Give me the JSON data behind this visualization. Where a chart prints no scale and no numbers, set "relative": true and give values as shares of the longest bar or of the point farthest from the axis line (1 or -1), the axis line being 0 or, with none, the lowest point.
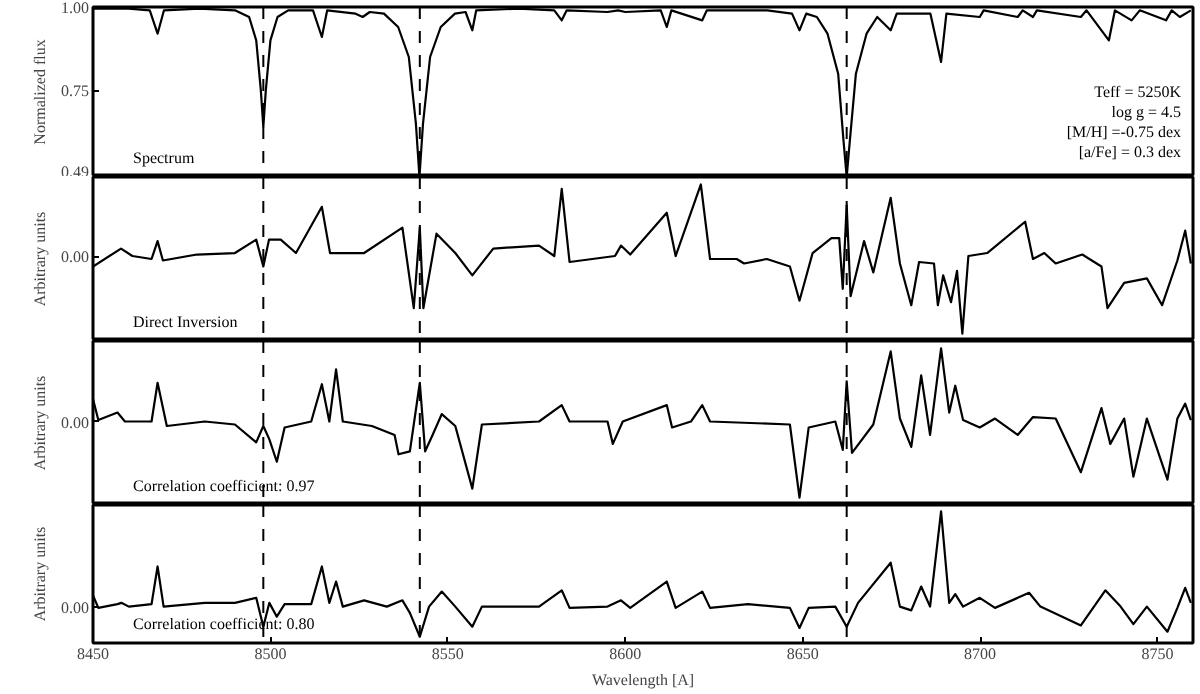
{
  "chart_data": [
    {
      "type": "line",
      "title": "Spectrum",
      "ylabel": "Normalized flux",
      "annotations": [
        "Teff = 5250K",
        "log g = 4.5",
        "[M/H] =-0.75 dex",
        "[a/Fe] = 0.3 dex"
      ],
      "xlim": [
        8450,
        8760
      ],
      "xticks": [
        8450,
        8500,
        8550,
        8600,
        8650,
        8700,
        8750
      ],
      "ylim": [
        0.49,
        1.0
      ],
      "yticks": [
        0.49,
        0.75,
        {
          "value": 1.0,
          "label": "1.00"
        }
      ],
      "tick_labels": "y",
      "line_style": "solid",
      "ref_lines": [
        {
          "axis": "x",
          "value": 8498,
          "label": null,
          "color": "#000000",
          "line_style": "dashed"
        },
        {
          "axis": "x",
          "value": 8542.1,
          "label": null,
          "color": "#000000",
          "line_style": "dashed"
        },
        {
          "axis": "x",
          "value": 8662.4,
          "label": null,
          "color": "#000000",
          "line_style": "dashed"
        }
      ],
      "series": [
        {
          "color": "#000000",
          "x": [
            8450,
            8460,
            8466,
            8468.2,
            8470,
            8480,
            8490,
            8494,
            8496,
            8497.3,
            8498,
            8498.7,
            8500,
            8502,
            8505,
            8512,
            8514.5,
            8516,
            8524,
            8526,
            8528,
            8532,
            8536,
            8539,
            8541,
            8542,
            8543,
            8545,
            8548,
            8552,
            8555,
            8556.9,
            8558,
            8570,
            8580,
            8582.1,
            8583.5,
            8595,
            8598,
            8600,
            8610,
            8611.7,
            8613,
            8621.7,
            8623,
            8640,
            8647,
            8649.1,
            8651,
            8654,
            8657,
            8660,
            8661.5,
            8662.4,
            8663.3,
            8665,
            8668,
            8671,
            8674.8,
            8676.5,
            8686,
            8689,
            8690.5,
            8699.9,
            8701,
            8710.6,
            8712,
            8714.9,
            8716,
            8728.4,
            8730,
            8736.3,
            8738,
            8742.7,
            8745,
            8752.4,
            8754,
            8756.3,
            8759.4
          ],
          "values": [
            0.995,
            0.995,
            0.99,
            0.92,
            0.99,
            0.995,
            0.99,
            0.97,
            0.9,
            0.75,
            0.64,
            0.75,
            0.9,
            0.97,
            0.99,
            0.99,
            0.91,
            0.99,
            0.98,
            0.97,
            0.985,
            0.98,
            0.94,
            0.85,
            0.65,
            0.49,
            0.65,
            0.85,
            0.94,
            0.98,
            0.985,
            0.93,
            0.99,
            0.995,
            0.99,
            0.96,
            0.99,
            0.985,
            0.99,
            0.985,
            0.99,
            0.94,
            0.99,
            0.96,
            0.99,
            0.99,
            0.98,
            0.93,
            0.98,
            0.97,
            0.92,
            0.8,
            0.6,
            0.49,
            0.6,
            0.8,
            0.92,
            0.97,
            0.93,
            0.98,
            0.98,
            0.835,
            0.98,
            0.97,
            0.99,
            0.97,
            0.99,
            0.97,
            0.99,
            0.97,
            0.99,
            0.9,
            0.99,
            0.96,
            0.99,
            0.96,
            0.99,
            0.97,
            0.99
          ]
        }
      ]
    },
    {
      "type": "line",
      "title": "Direct Inversion",
      "ylabel": "Arbitrary units",
      "relative": true,
      "xlim": [
        8450,
        8760
      ],
      "xticks": [
        8450,
        8500,
        8550,
        8600,
        8650,
        8700,
        8750
      ],
      "annotations": [
        "0.00"
      ],
      "tick_labels": "y",
      "line_style": "solid",
      "ref_lines": [
        {
          "axis": "x",
          "value": 8498,
          "label": null,
          "color": "#000000",
          "line_style": "dashed"
        },
        {
          "axis": "x",
          "value": 8542.1,
          "label": null,
          "color": "#000000",
          "line_style": "dashed"
        },
        {
          "axis": "x",
          "value": 8662.4,
          "label": null,
          "color": "#000000",
          "line_style": "dashed"
        }
      ],
      "series": [
        {
          "color": "#000000",
          "x": [
            8450,
            8457.9,
            8461.1,
            8466.5,
            8468.2,
            8469.7,
            8479.3,
            8490,
            8496,
            8498,
            8499.6,
            8502.9,
            8507.2,
            8514.5,
            8516.8,
            8526.4,
            8537.2,
            8540.4,
            8542.1,
            8543.1,
            8546.8,
            8552.1,
            8556.9,
            8562.8,
            8575.7,
            8580,
            8582.1,
            8584.3,
            8597.1,
            8598.8,
            8601.4,
            8611.7,
            8614.2,
            8621.3,
            8623.9,
            8631.4,
            8633.5,
            8639.9,
            8646.4,
            8649.1,
            8652.8,
            8658.1,
            8660.3,
            8661.3,
            8662.4,
            8663.5,
            8667.3,
            8669.9,
            8674.8,
            8677.4,
            8680.6,
            8682.8,
            8687,
            8688.1,
            8689.6,
            8691.8,
            8693.5,
            8695,
            8696.7,
            8702,
            8712.7,
            8714.9,
            8718.1,
            8721.3,
            8728.8,
            8734.2,
            8735.9,
            8740.6,
            8747,
            8751.3,
            8755.6,
            8757.8,
            8759.4
          ],
          "values": [
            0.45,
            0.57,
            0.52,
            0.5,
            0.62,
            0.49,
            0.53,
            0.54,
            0.63,
            0.45,
            0.63,
            0.63,
            0.54,
            0.85,
            0.54,
            0.54,
            0.71,
            0.17,
            0.71,
            0.17,
            0.67,
            0.54,
            0.39,
            0.57,
            0.59,
            0.52,
            0.97,
            0.48,
            0.52,
            0.59,
            0.53,
            0.81,
            0.52,
            1,
            0.5,
            0.5,
            0.47,
            0.5,
            0.45,
            0.22,
            0.54,
            0.64,
            0.64,
            0.3,
            0.86,
            0.25,
            0.62,
            0.41,
            0.91,
            0.47,
            0.19,
            0.48,
            0.47,
            0.19,
            0.39,
            0.21,
            0.42,
            0,
            0.52,
            0.54,
            0.75,
            0.5,
            0.54,
            0.47,
            0.53,
            0.45,
            0.17,
            0.34,
            0.37,
            0.19,
            0.49,
            0.69,
            0.47
          ]
        }
      ]
    },
    {
      "type": "line",
      "title": "Correlation coefficient: 0.97",
      "ylabel": "Arbitrary units",
      "relative": true,
      "xlim": [
        8450,
        8760
      ],
      "xticks": [
        8450,
        8500,
        8550,
        8600,
        8650,
        8700,
        8750
      ],
      "annotations": [
        "0.00"
      ],
      "tick_labels": "y",
      "line_style": "solid",
      "ref_lines": [
        {
          "axis": "x",
          "value": 8498,
          "label": null,
          "color": "#000000",
          "line_style": "dashed"
        },
        {
          "axis": "x",
          "value": 8542.1,
          "label": null,
          "color": "#000000",
          "line_style": "dashed"
        },
        {
          "axis": "x",
          "value": 8662.4,
          "label": null,
          "color": "#000000",
          "line_style": "dashed"
        }
      ],
      "series": [
        {
          "color": "#000000",
          "x": [
            8450,
            8451.5,
            8456.9,
            8459,
            8466.5,
            8468.2,
            8470.8,
            8481.5,
            8490,
            8496,
            8498,
            8499.7,
            8501.8,
            8504,
            8511.5,
            8514.5,
            8516.6,
            8518.5,
            8520.4,
            8528.6,
            8535,
            8536.1,
            8539.3,
            8542.1,
            8543.6,
            8545.7,
            8548.3,
            8552.1,
            8556.9,
            8559.6,
            8575.7,
            8582.1,
            8584.3,
            8595,
            8596.5,
            8599.3,
            8611.7,
            8613.2,
            8618.5,
            8621.7,
            8623.9,
            8646.4,
            8649.1,
            8651.7,
            8659.2,
            8661.3,
            8662.4,
            8663.9,
            8669.9,
            8674.8,
            8677.4,
            8680.6,
            8683.4,
            8685.9,
            8689,
            8691.3,
            8693,
            8695.2,
            8699.9,
            8704.2,
            8710.6,
            8714.9,
            8721.3,
            8728.4,
            8734.2,
            8736.7,
            8740.6,
            8743.2,
            8747,
            8752.8,
            8755.6,
            8757.8,
            8759.4
          ],
          "values": [
            0.66,
            0.52,
            0.57,
            0.51,
            0.51,
            0.77,
            0.48,
            0.51,
            0.49,
            0.37,
            0.48,
            0.39,
            0.24,
            0.47,
            0.51,
            0.76,
            0.51,
            0.86,
            0.51,
            0.48,
            0.42,
            0.29,
            0.31,
            0.77,
            0.31,
            0.42,
            0.56,
            0.48,
            0.06,
            0.49,
            0.51,
            0.62,
            0.51,
            0.51,
            0.36,
            0.51,
            0.62,
            0.47,
            0.51,
            0.62,
            0.51,
            0.49,
            0,
            0.47,
            0.51,
            0.32,
            0.78,
            0.3,
            0.49,
            0.98,
            0.53,
            0.34,
            0.82,
            0.42,
            1,
            0.57,
            0.75,
            0.52,
            0.47,
            0.53,
            0.42,
            0.54,
            0.53,
            0.17,
            0.6,
            0.36,
            0.53,
            0.14,
            0.53,
            0.12,
            0.53,
            0.63,
            0.52
          ]
        }
      ]
    },
    {
      "type": "line",
      "title": "Correlation coefficient: 0.80",
      "ylabel": "Arbitrary units",
      "xlabel": "Wavelength [A]",
      "relative": true,
      "xlim": [
        8450,
        8760
      ],
      "xticks": [
        8450,
        8500,
        8550,
        8600,
        8650,
        8700,
        8750
      ],
      "annotations": [
        "0.00"
      ],
      "line_style": "solid",
      "ref_lines": [
        {
          "axis": "x",
          "value": 8498,
          "label": null,
          "color": "#000000",
          "line_style": "dashed"
        },
        {
          "axis": "x",
          "value": 8542.1,
          "label": null,
          "color": "#000000",
          "line_style": "dashed"
        },
        {
          "axis": "x",
          "value": 8662.4,
          "label": null,
          "color": "#000000",
          "line_style": "dashed"
        }
      ],
      "series": [
        {
          "color": "#000000",
          "x": [
            8450,
            8451.5,
            8456.9,
            8458,
            8460.1,
            8466.5,
            8468.2,
            8469.9,
            8481.5,
            8490,
            8496,
            8498,
            8499.7,
            8501.8,
            8504,
            8511.5,
            8514.5,
            8516.6,
            8518.5,
            8520.4,
            8526.4,
            8532.8,
            8537.2,
            8539.3,
            8542.1,
            8544.7,
            8548.3,
            8552.1,
            8556.9,
            8559.6,
            8575.7,
            8582.1,
            8584.3,
            8595,
            8598.8,
            8601.4,
            8611.7,
            8614.2,
            8621.7,
            8623.9,
            8634.6,
            8646.4,
            8649.1,
            8651.7,
            8659.2,
            8662.4,
            8665.6,
            8674.8,
            8677.4,
            8680.6,
            8683.4,
            8685.9,
            8689,
            8691.3,
            8693,
            8695.2,
            8699.9,
            8704.2,
            8710.6,
            8713.8,
            8717,
            8728.4,
            8735.3,
            8739.6,
            8743.2,
            8747,
            8752.8,
            8755.6,
            8757.8,
            8759.4
          ],
          "values": [
            0.33,
            0.23,
            0.26,
            0.27,
            0.24,
            0.26,
            0.56,
            0.24,
            0.27,
            0.27,
            0.31,
            0.08,
            0.27,
            0.16,
            0.26,
            0.26,
            0.56,
            0.27,
            0.44,
            0.24,
            0.29,
            0.24,
            0.29,
            0.19,
            0,
            0.24,
            0.36,
            0.24,
            0.08,
            0.24,
            0.24,
            0.37,
            0.23,
            0.24,
            0.29,
            0.23,
            0.44,
            0.23,
            0.36,
            0.23,
            0.26,
            0.23,
            0.07,
            0.23,
            0.24,
            0.08,
            0.27,
            0.59,
            0.24,
            0.21,
            0.4,
            0.24,
            1,
            0.27,
            0.34,
            0.24,
            0.31,
            0.23,
            0.31,
            0.35,
            0.24,
            0.09,
            0.37,
            0.24,
            0.1,
            0.24,
            0.04,
            0.23,
            0.39,
            0.27
          ]
        }
      ]
    }
  ]
}
